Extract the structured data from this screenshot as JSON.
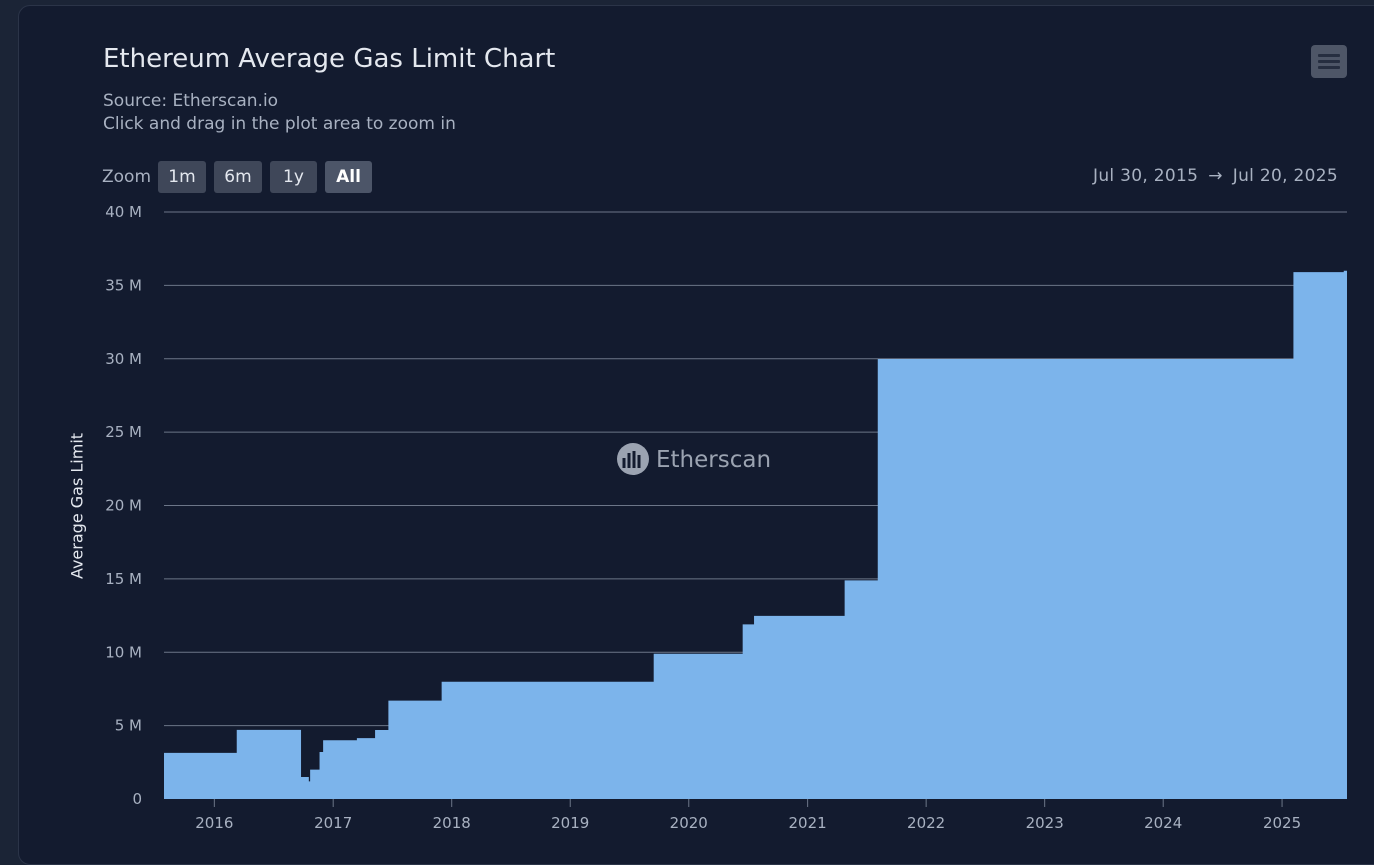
{
  "header": {
    "title": "Ethereum Average Gas Limit Chart",
    "source": "Source: Etherscan.io",
    "hint": "Click and drag in the plot area to zoom in",
    "menu_icon": "hamburger-menu-icon"
  },
  "zoom": {
    "label": "Zoom",
    "buttons": [
      "1m",
      "6m",
      "1y",
      "All"
    ],
    "active": "All"
  },
  "range": {
    "from": "Jul 30, 2015",
    "arrow": "→",
    "to": "Jul 20, 2025"
  },
  "watermark": "Etherscan",
  "colors": {
    "fill": "#7cb4eb",
    "grid": "#6c7688",
    "background": "#131b2f"
  },
  "chart_data": {
    "type": "area",
    "title": "Ethereum Average Gas Limit Chart",
    "ylabel": "Average Gas Limit",
    "xlabel": "",
    "ylim": [
      0,
      40000000
    ],
    "xlim": [
      "2015-07-30",
      "2025-07-20"
    ],
    "y_ticks": [
      {
        "value": 0,
        "label": "0"
      },
      {
        "value": 5000000,
        "label": "5 M"
      },
      {
        "value": 10000000,
        "label": "10 M"
      },
      {
        "value": 15000000,
        "label": "15 M"
      },
      {
        "value": 20000000,
        "label": "20 M"
      },
      {
        "value": 25000000,
        "label": "25 M"
      },
      {
        "value": 30000000,
        "label": "30 M"
      },
      {
        "value": 35000000,
        "label": "35 M"
      },
      {
        "value": 40000000,
        "label": "40 M"
      }
    ],
    "x_ticks": [
      "2016",
      "2017",
      "2018",
      "2019",
      "2020",
      "2021",
      "2022",
      "2023",
      "2024",
      "2025"
    ],
    "grid": true,
    "legend": false,
    "series": [
      {
        "points": [
          [
            "2015-07-30",
            3140000
          ],
          [
            "2016-03-10",
            4710000
          ],
          [
            "2016-09-20",
            4710000
          ],
          [
            "2016-09-24",
            1500000
          ],
          [
            "2016-10-18",
            1200000
          ],
          [
            "2016-10-22",
            2000000
          ],
          [
            "2016-11-20",
            3200000
          ],
          [
            "2016-12-01",
            4000000
          ],
          [
            "2017-03-15",
            4150000
          ],
          [
            "2017-05-10",
            4700000
          ],
          [
            "2017-06-20",
            6700000
          ],
          [
            "2017-12-01",
            7990000
          ],
          [
            "2019-09-15",
            9900000
          ],
          [
            "2020-06-15",
            11900000
          ],
          [
            "2020-07-20",
            12480000
          ],
          [
            "2021-04-25",
            14900000
          ],
          [
            "2021-08-05",
            29980000
          ],
          [
            "2025-02-05",
            35900000
          ],
          [
            "2025-07-10",
            36000000
          ],
          [
            "2025-07-20",
            36400000
          ]
        ]
      }
    ]
  }
}
